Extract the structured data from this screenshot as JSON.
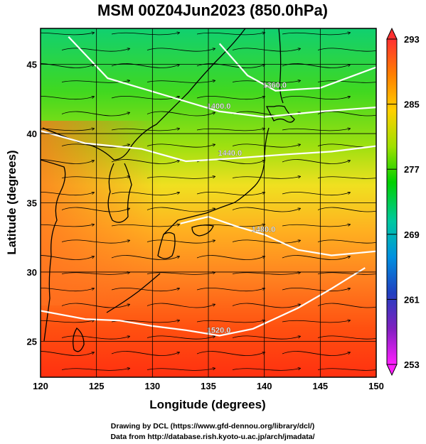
{
  "page": {
    "title": "MSM 00Z04Jun2023 (850.0hPa)",
    "credit_line_1": "Drawing by DCL (https://www.gfd-dennou.org/library/dcl/)",
    "credit_line_2": "Data from http://database.rish.kyoto-u.ac.jp/arch/jmadata/"
  },
  "chart_data": {
    "type": "heatmap",
    "title": "MSM 00Z04Jun2023 (850.0hPa)",
    "xlabel": "Longitude (degrees)",
    "ylabel": "Latitude  (degrees)",
    "xlim": [
      120,
      150
    ],
    "ylim": [
      22.4,
      47.6
    ],
    "x_ticks": [
      120,
      125,
      130,
      135,
      140,
      145,
      150
    ],
    "y_ticks": [
      25,
      30,
      35,
      40,
      45
    ],
    "grid": true,
    "colorbar": {
      "min": 253,
      "max": 293,
      "tick_labels": [
        293,
        285,
        277,
        269,
        261,
        253
      ],
      "colors": [
        "#ff3030",
        "#ff8000",
        "#ffd000",
        "#a0e000",
        "#00d000",
        "#00c8a0",
        "#0090e0",
        "#2040c0",
        "#8020c0",
        "#ff20ff"
      ]
    },
    "contours": [
      {
        "label": "1360.0",
        "points": [
          [
            136,
            46.5
          ],
          [
            138.5,
            44.2
          ],
          [
            141,
            43.1
          ],
          [
            145,
            43.3
          ],
          [
            150,
            44.8
          ]
        ]
      },
      {
        "label": "1400.0",
        "points": [
          [
            122.5,
            47.0
          ],
          [
            126,
            44.0
          ],
          [
            131,
            42.8
          ],
          [
            136,
            41.6
          ],
          [
            140,
            41.2
          ],
          [
            145,
            41.6
          ],
          [
            150,
            41.9
          ]
        ]
      },
      {
        "label": "1440.0",
        "points": [
          [
            120,
            40.2
          ],
          [
            124,
            39.3
          ],
          [
            129,
            38.9
          ],
          [
            133,
            38.0
          ],
          [
            137,
            38.2
          ],
          [
            142,
            38.5
          ],
          [
            146,
            38.7
          ],
          [
            150,
            39.1
          ]
        ]
      },
      {
        "label": "1480.0",
        "points": [
          [
            132.5,
            33.5
          ],
          [
            135,
            34.0
          ],
          [
            137.5,
            33.3
          ],
          [
            140,
            32.7
          ],
          [
            143,
            31.6
          ],
          [
            146,
            31.2
          ],
          [
            150,
            31.5
          ]
        ]
      },
      {
        "label": "1520.0",
        "points": [
          [
            120,
            27.2
          ],
          [
            124,
            26.6
          ],
          [
            127,
            26.5
          ],
          [
            130,
            26.1
          ],
          [
            133,
            25.8
          ],
          [
            136,
            25.4
          ],
          [
            139,
            25.9
          ],
          [
            143,
            27.4
          ],
          [
            146,
            28.8
          ],
          [
            149,
            30.3
          ]
        ]
      }
    ],
    "source": "MSM"
  }
}
